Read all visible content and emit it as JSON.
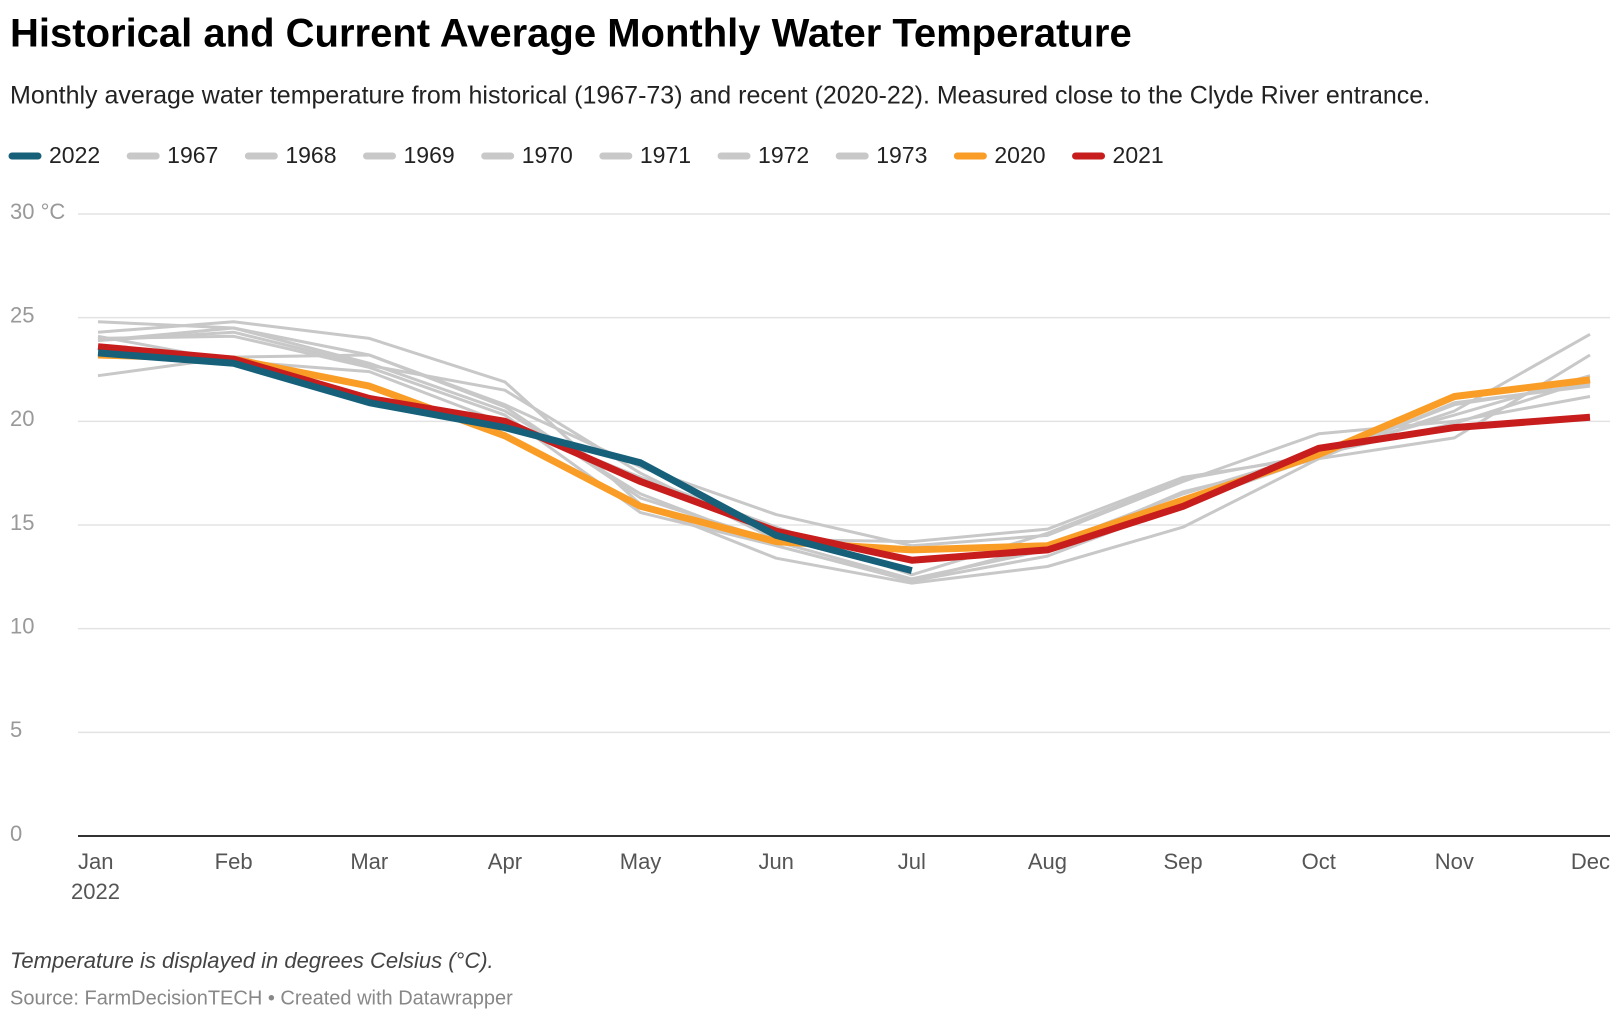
{
  "chart_data": {
    "type": "line",
    "title": "Historical and Current Average Monthly Water Temperature",
    "subtitle": "Monthly average water temperature from historical (1967-73) and recent (2020-22). Measured close to the Clyde River entrance.",
    "categories": [
      "Jan",
      "Feb",
      "Mar",
      "Apr",
      "May",
      "Jun",
      "Jul",
      "Aug",
      "Sep",
      "Oct",
      "Nov",
      "Dec"
    ],
    "x_year_label": "2022",
    "ylim": [
      0,
      30
    ],
    "yticks": [
      0,
      5,
      10,
      15,
      20,
      25,
      {
        "value": 30,
        "label": "30 °C"
      }
    ],
    "grid": true,
    "legend": "top",
    "series": [
      {
        "name": "2022",
        "color": "#17607a",
        "values": [
          23.3,
          22.8,
          20.9,
          19.7,
          18.0,
          14.5,
          12.8,
          null,
          null,
          null,
          null,
          null
        ]
      },
      {
        "name": "1967",
        "color": "#c8c8c8",
        "values": [
          24.8,
          24.5,
          22.8,
          20.5,
          16.5,
          14.0,
          12.3,
          13.5,
          16.0,
          18.3,
          20.5,
          24.2
        ]
      },
      {
        "name": "1968",
        "color": "#c8c8c8",
        "values": [
          24.3,
          24.8,
          24.0,
          21.9,
          16.0,
          13.4,
          12.2,
          13.0,
          14.9,
          18.2,
          19.2,
          23.2
        ]
      },
      {
        "name": "1969",
        "color": "#c8c8c8",
        "values": [
          23.9,
          24.3,
          22.7,
          21.5,
          17.5,
          14.3,
          14.2,
          14.8,
          17.3,
          18.3,
          20.8,
          21.8
        ]
      },
      {
        "name": "1970",
        "color": "#c8c8c8",
        "values": [
          22.2,
          23.1,
          23.2,
          20.8,
          17.8,
          15.5,
          14.0,
          14.5,
          17.1,
          19.4,
          20.0,
          21.2
        ]
      },
      {
        "name": "1971",
        "color": "#c8c8c8",
        "values": [
          24.0,
          24.1,
          22.6,
          20.3,
          15.6,
          14.0,
          12.3,
          14.0,
          16.5,
          18.5,
          20.3,
          22.2
        ]
      },
      {
        "name": "1972",
        "color": "#c8c8c8",
        "values": [
          23.9,
          24.5,
          23.2,
          20.7,
          16.3,
          14.2,
          12.4,
          13.8,
          16.6,
          18.2,
          20.9,
          21.7
        ]
      },
      {
        "name": "1973",
        "color": "#c8c8c8",
        "values": [
          24.1,
          22.9,
          22.4,
          19.9,
          17.3,
          14.9,
          12.6,
          14.6,
          17.2,
          18.4,
          19.9,
          22.0
        ]
      },
      {
        "name": "2020",
        "color": "#f99d27",
        "values": [
          23.2,
          23.0,
          21.7,
          19.3,
          15.9,
          14.2,
          13.8,
          14.0,
          16.2,
          18.4,
          21.2,
          22.0
        ]
      },
      {
        "name": "2021",
        "color": "#c71e1d",
        "values": [
          23.6,
          23.0,
          21.1,
          20.0,
          17.1,
          14.7,
          13.3,
          13.8,
          15.9,
          18.7,
          19.7,
          20.2
        ]
      }
    ],
    "note": "Temperature is displayed in degrees Celsius (°C).",
    "source": "Source: FarmDecisionTECH • Created with Datawrapper"
  }
}
